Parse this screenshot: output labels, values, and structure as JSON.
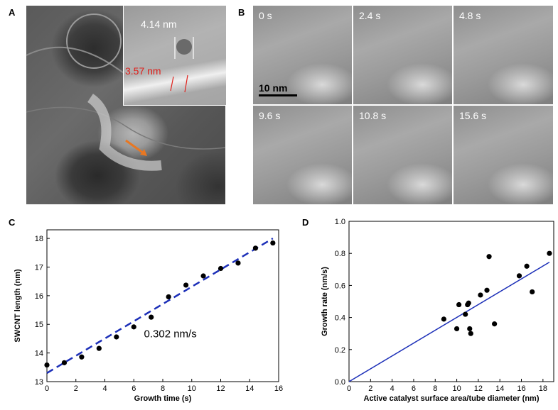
{
  "panels": {
    "A": {
      "letter": "A",
      "inset_labels": {
        "diameter_top": "4.14 nm",
        "diameter_bottom": "3.57 nm"
      },
      "colors": {
        "top_label": "#ffffff",
        "bottom_label": "#e0201b",
        "arrow": "#e87722"
      }
    },
    "B": {
      "letter": "B",
      "scale_bar": "10 nm",
      "frames": [
        "0 s",
        "2.4 s",
        "4.8 s",
        "9.6 s",
        "10.8 s",
        "15.6 s"
      ]
    },
    "C": {
      "letter": "C"
    },
    "D": {
      "letter": "D"
    }
  },
  "chart_data": [
    {
      "type": "scatter",
      "panel": "C",
      "xlabel": "Growth time (s)",
      "ylabel": "SWCNT length (nm)",
      "xlim": [
        0,
        16
      ],
      "ylim": [
        13,
        18.3
      ],
      "xticks": [
        0,
        2,
        4,
        6,
        8,
        10,
        12,
        14,
        16
      ],
      "yticks": [
        13,
        14,
        15,
        16,
        17,
        18
      ],
      "x": [
        0,
        1.2,
        2.4,
        3.6,
        4.8,
        6.0,
        7.2,
        8.4,
        9.6,
        10.8,
        12.0,
        13.2,
        14.4,
        15.6
      ],
      "y": [
        13.58,
        13.66,
        13.86,
        14.16,
        14.56,
        14.91,
        15.25,
        15.96,
        16.37,
        16.69,
        16.95,
        17.14,
        17.66,
        17.84
      ],
      "fit": {
        "x": [
          0,
          15.6
        ],
        "y": [
          13.3,
          18.0
        ],
        "style": "dashed",
        "color": "#1c2fb8"
      },
      "annotation": "0.302 nm/s",
      "grid": false,
      "marker_color": "#000000"
    },
    {
      "type": "scatter",
      "panel": "D",
      "xlabel": "Active catalyst surface area/tube diameter (nm)",
      "ylabel": "Growth rate (nm/s)",
      "xlim": [
        0,
        19
      ],
      "ylim": [
        0,
        1.0
      ],
      "xticks": [
        0,
        2,
        4,
        6,
        8,
        10,
        12,
        14,
        16,
        18
      ],
      "yticks": [
        "0.0",
        "0.2",
        "0.4",
        "0.6",
        "0.8",
        "1.0"
      ],
      "x": [
        8.8,
        10.0,
        10.2,
        10.8,
        11.0,
        11.1,
        11.2,
        11.3,
        12.2,
        12.8,
        13.0,
        13.5,
        15.8,
        16.5,
        17.0,
        18.6
      ],
      "y": [
        0.39,
        0.33,
        0.48,
        0.42,
        0.48,
        0.49,
        0.33,
        0.3,
        0.54,
        0.57,
        0.78,
        0.36,
        0.66,
        0.72,
        0.56,
        0.8
      ],
      "fit": {
        "x": [
          0,
          18.6
        ],
        "y": [
          0,
          0.745
        ],
        "style": "solid",
        "color": "#1c2fb8"
      },
      "grid": false,
      "marker_color": "#000000"
    }
  ]
}
